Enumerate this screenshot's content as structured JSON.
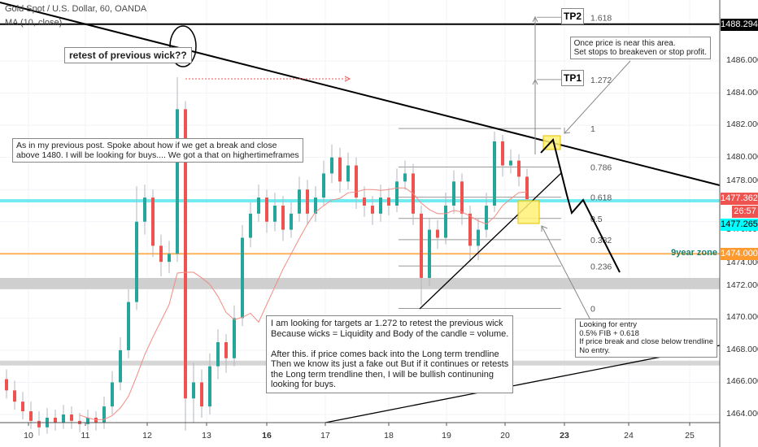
{
  "header": {
    "symbol_title": "Gold Spot / U.S. Dollar, 60, OANDA",
    "indicator": "MA (10, close)"
  },
  "chart_data": {
    "type": "candlestick",
    "title": "Gold Spot / U.S. Dollar, 60, OANDA",
    "ylim": [
      1462.5,
      1489.5
    ],
    "y_ticks": [
      "1464.000",
      "1466.000",
      "1468.000",
      "1470.000",
      "1472.000",
      "1474.000",
      "1476.000",
      "1478.000",
      "1480.000",
      "1482.000",
      "1484.000",
      "1486.000"
    ],
    "x_ticks": [
      "10",
      "11",
      "12",
      "13",
      "16",
      "17",
      "18",
      "19",
      "20",
      "23",
      "24",
      "25"
    ],
    "grid": true,
    "candles_ohlc": [
      [
        1466.2,
        1466.8,
        1465,
        1465.5
      ],
      [
        1465.5,
        1466.1,
        1464.3,
        1464.8
      ],
      [
        1464.8,
        1465.4,
        1463.7,
        1464.2
      ],
      [
        1464.2,
        1464.8,
        1463.1,
        1463.6
      ],
      [
        1463.6,
        1464.2,
        1462.7,
        1463.2
      ],
      [
        1463.2,
        1464.4,
        1462.8,
        1463.8
      ],
      [
        1463.8,
        1464.3,
        1463,
        1463.5
      ],
      [
        1463.5,
        1464.6,
        1463.1,
        1464
      ],
      [
        1464,
        1464.5,
        1463.1,
        1463.6
      ],
      [
        1463.6,
        1464.1,
        1462.9,
        1463.4
      ],
      [
        1463.4,
        1464.3,
        1463,
        1463.8
      ],
      [
        1463.8,
        1464.2,
        1463,
        1463.5
      ],
      [
        1463.5,
        1465.1,
        1463.1,
        1464.5
      ],
      [
        1464.5,
        1466.7,
        1464,
        1466
      ],
      [
        1466,
        1468.8,
        1465.5,
        1468
      ],
      [
        1468,
        1471.8,
        1467.5,
        1471
      ],
      [
        1471,
        1478.2,
        1470.5,
        1476
      ],
      [
        1476,
        1478.3,
        1475.2,
        1477.5
      ],
      [
        1477.5,
        1478,
        1473.8,
        1474.5
      ],
      [
        1474.5,
        1475.2,
        1472.6,
        1473.5
      ],
      [
        1473.5,
        1474.8,
        1472.8,
        1474
      ],
      [
        1474,
        1485,
        1473.5,
        1483
      ],
      [
        1483,
        1483.5,
        1463,
        1465
      ],
      [
        1465,
        1467.2,
        1463.5,
        1466
      ],
      [
        1466,
        1466.8,
        1463.8,
        1464.5
      ],
      [
        1464.5,
        1467.8,
        1464,
        1467
      ],
      [
        1467,
        1469.3,
        1466.2,
        1468.5
      ],
      [
        1468.5,
        1469,
        1466.6,
        1467.5
      ],
      [
        1467.5,
        1470.8,
        1467,
        1470
      ],
      [
        1470,
        1475.8,
        1469.5,
        1475
      ],
      [
        1475,
        1477.2,
        1474.4,
        1476.5
      ],
      [
        1476.5,
        1478.3,
        1476,
        1477.5
      ],
      [
        1477.5,
        1478,
        1475.3,
        1476
      ],
      [
        1476,
        1477.8,
        1475.4,
        1477
      ],
      [
        1477,
        1477.6,
        1474.8,
        1475.5
      ],
      [
        1475.5,
        1477.2,
        1475,
        1476.5
      ],
      [
        1476.5,
        1478.8,
        1476,
        1478
      ],
      [
        1478,
        1478.6,
        1475.8,
        1476.5
      ],
      [
        1476.5,
        1478.2,
        1476,
        1477.5
      ],
      [
        1477.5,
        1479.8,
        1477,
        1479
      ],
      [
        1479,
        1480.8,
        1478.4,
        1480
      ],
      [
        1480,
        1480.6,
        1477.8,
        1478.5
      ],
      [
        1478.5,
        1480.3,
        1478,
        1479.5
      ],
      [
        1479.5,
        1480,
        1476.8,
        1477.5
      ],
      [
        1477.5,
        1478.2,
        1476.3,
        1477
      ],
      [
        1477,
        1477.6,
        1475.8,
        1476.5
      ],
      [
        1476.5,
        1478.3,
        1476,
        1477.5
      ],
      [
        1477.5,
        1478.1,
        1476.4,
        1477
      ],
      [
        1477,
        1479.3,
        1476.6,
        1478.5
      ],
      [
        1478.5,
        1479.8,
        1478,
        1479
      ],
      [
        1479,
        1479.6,
        1475.8,
        1476.5
      ],
      [
        1476.5,
        1477,
        1470.8,
        1472.5
      ],
      [
        1472.5,
        1476.2,
        1472,
        1475.5
      ],
      [
        1475.5,
        1476.1,
        1474.3,
        1475
      ],
      [
        1475,
        1477.8,
        1474.6,
        1477
      ],
      [
        1477,
        1479.2,
        1476.5,
        1478.5
      ],
      [
        1478.5,
        1479,
        1475.8,
        1476.5
      ],
      [
        1476.5,
        1477,
        1473.5,
        1474.5
      ],
      [
        1474.5,
        1476.2,
        1473.6,
        1475.5
      ],
      [
        1475.5,
        1477.8,
        1475,
        1477
      ],
      [
        1477,
        1481.6,
        1476.6,
        1481
      ],
      [
        1481,
        1481.4,
        1478.8,
        1479.5
      ],
      [
        1479.5,
        1480.5,
        1479,
        1479.8
      ],
      [
        1479.8,
        1480.2,
        1478.2,
        1478.8
      ],
      [
        1478.8,
        1479.3,
        1476.8,
        1477.4
      ]
    ],
    "ma_period": 10,
    "fib": {
      "price_0": 1470.6,
      "price_1": 1481.8,
      "levels": [
        "0",
        "0.236",
        "0.382",
        "0.5",
        "0.618",
        "0.786",
        "1",
        "1.272",
        "1.618"
      ]
    },
    "horizontal_levels": {
      "tp_line": 1488.294,
      "cyan_line": 1477.3,
      "orange_zone": 1474.0,
      "gray_band": [
        1471.8,
        1472.5
      ],
      "gray_line": 1467.2
    },
    "price_labels": [
      {
        "text": "1488.294",
        "bg": "#000000",
        "fg": "#ffffff"
      },
      {
        "text": "1477.362",
        "bg": "#ef5350",
        "fg": "#ffffff"
      },
      {
        "text": "26:57",
        "bg": "#ef5350",
        "fg": "#ffffff"
      },
      {
        "text": "1477.265",
        "bg": "#00ffff",
        "fg": "#000000"
      },
      {
        "text": "1474.000",
        "bg": "#ff9a2e",
        "fg": "#ffffff"
      }
    ],
    "colors": {
      "up": "#26a69a",
      "down": "#ef5350",
      "ma": "#f28b82",
      "cyan": "#4ee6ee",
      "orange": "#ffb25a",
      "highlight": "#fff176"
    }
  },
  "annotations": {
    "retest": "retest of previous wick??",
    "previous_post": "As in my previous post. Spoke about how if we get a break and close\nabove 1480. I will be looking for buys.... We got a that on highertimeframes",
    "targets": "I am looking for targets ar 1.272 to retest the previous wick\nBecause wicks = Liquidity and Body of the candle = volume.\n\nAfter this. if price comes back into the Long term trendline\nThen we know its just a fake out But if it continues or retests\nthe Long term trendline then, I will be bullish continuning\nlooking for buys.",
    "entry": "Looking for entry\n0.5% FIB + 0.618\nIf price break and close below trendline\nNo entry.",
    "once_price": "Once price is near this area.\nSet stops to breakeven or stop profit.",
    "tp1": "TP1",
    "tp2": "TP2",
    "zone_label": "9year zone"
  }
}
